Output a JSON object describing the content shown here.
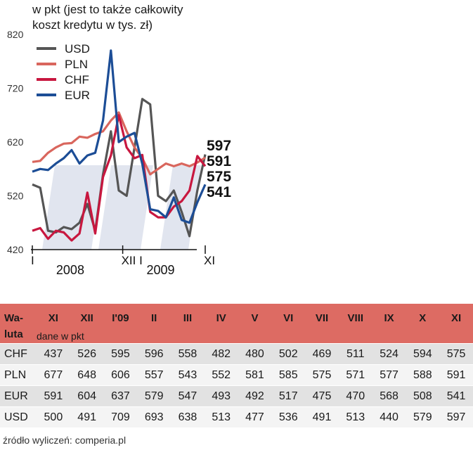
{
  "chart_data": {
    "type": "line",
    "title_lines": [
      "w pkt (jest to także całkowity",
      "koszt kredytu w tys. zł)"
    ],
    "ylim": [
      420,
      820
    ],
    "y_ticks": [
      420,
      520,
      620,
      720,
      820
    ],
    "x_tick_labels": [
      {
        "label": "I",
        "index": 0
      },
      {
        "label": "XII I",
        "index": 11.5
      },
      {
        "label": "XI",
        "index": 22
      }
    ],
    "year_labels": [
      {
        "label": "2008",
        "index": 5
      },
      {
        "label": "2009",
        "index": 16.5
      }
    ],
    "n_points": 23,
    "series": [
      {
        "name": "USD",
        "color": "#555555",
        "values": [
          541,
          535,
          455,
          452,
          462,
          458,
          470,
          505,
          455,
          560,
          640,
          530,
          520,
          610,
          700,
          690,
          520,
          510,
          530,
          490,
          445,
          530,
          597
        ]
      },
      {
        "name": "PLN",
        "color": "#d9665d",
        "values": [
          583,
          585,
          600,
          610,
          617,
          618,
          630,
          628,
          635,
          640,
          660,
          675,
          640,
          610,
          590,
          560,
          570,
          580,
          575,
          580,
          575,
          582,
          591
        ]
      },
      {
        "name": "CHF",
        "color": "#c8173f",
        "values": [
          455,
          460,
          440,
          455,
          452,
          437,
          450,
          526,
          450,
          555,
          595,
          670,
          610,
          590,
          596,
          490,
          480,
          480,
          500,
          510,
          530,
          594,
          575
        ]
      },
      {
        "name": "EUR",
        "color": "#1c4d96",
        "values": [
          565,
          570,
          568,
          580,
          590,
          605,
          580,
          595,
          600,
          660,
          790,
          620,
          630,
          637,
          579,
          495,
          492,
          480,
          517,
          475,
          470,
          508,
          541
        ]
      }
    ],
    "end_labels": [
      "597",
      "591",
      "575",
      "541"
    ]
  },
  "table": {
    "header_col1_line1": "Wa-",
    "header_col1_line2": "luta",
    "subheader": "dane w pkt",
    "months": [
      "XI",
      "XII",
      "I'09",
      "II",
      "III",
      "IV",
      "V",
      "VI",
      "VII",
      "VIII",
      "IX",
      "X",
      "XI"
    ],
    "rows": [
      {
        "currency": "CHF",
        "values": [
          "437",
          "526",
          "595",
          "596",
          "558",
          "482",
          "480",
          "502",
          "469",
          "511",
          "524",
          "594",
          "575"
        ]
      },
      {
        "currency": "PLN",
        "values": [
          "677",
          "648",
          "606",
          "557",
          "543",
          "552",
          "581",
          "585",
          "575",
          "571",
          "577",
          "588",
          "591"
        ]
      },
      {
        "currency": "EUR",
        "values": [
          "591",
          "604",
          "637",
          "579",
          "547",
          "493",
          "492",
          "517",
          "475",
          "470",
          "568",
          "508",
          "541"
        ]
      },
      {
        "currency": "USD",
        "values": [
          "500",
          "491",
          "709",
          "693",
          "638",
          "513",
          "477",
          "536",
          "491",
          "513",
          "440",
          "579",
          "597"
        ]
      }
    ]
  },
  "source": "źródło wyliczeń: comperia.pl",
  "colors": {
    "header_bg": "#dd6b63",
    "shade": "#c8d0e2"
  }
}
